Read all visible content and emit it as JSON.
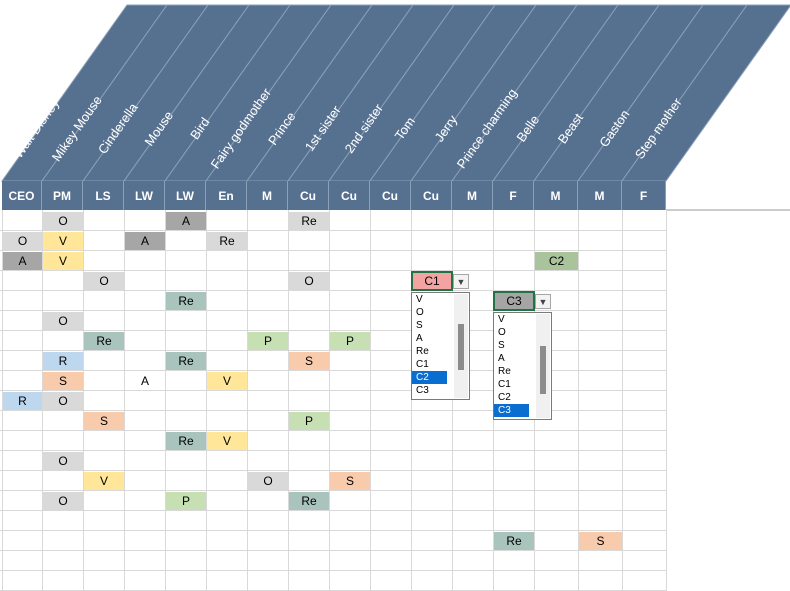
{
  "sheet": {
    "names": [
      "Walt Disney",
      "Mikey Mouse",
      "Cinderella",
      "Mouse",
      "Bird",
      "Fairy godmother",
      "Prince",
      "1st sister",
      "2nd sister",
      "Tom",
      "Jerry",
      "Prince charming",
      "Belle",
      "Beast",
      "Gaston",
      "Step mother"
    ],
    "roles": [
      "CEO",
      "PM",
      "LS",
      "LW",
      "LW",
      "En",
      "M",
      "Cu",
      "Cu",
      "Cu",
      "Cu",
      "M",
      "F",
      "M",
      "M",
      "F"
    ],
    "colors": {
      "header": "#56708f",
      "grey": "#a6a6a6",
      "light_grey": "#d9d9d9",
      "yellow": "#ffe699",
      "green_dark": "#a9c4bc",
      "green_light": "#c6e0b4",
      "orange": "#f8cbad",
      "blue": "#bdd7ee",
      "red": "#f4a3a3",
      "green_c2": "#a9c49b",
      "c3": "#a5a5a5"
    },
    "cells": [
      {
        "row": 0,
        "col": 1,
        "text": "O",
        "color": "light_grey"
      },
      {
        "row": 0,
        "col": 4,
        "text": "A",
        "color": "grey"
      },
      {
        "row": 0,
        "col": 7,
        "text": "Re",
        "color": "light_grey"
      },
      {
        "row": 1,
        "col": 0,
        "text": "O",
        "color": "light_grey"
      },
      {
        "row": 1,
        "col": 1,
        "text": "V",
        "color": "yellow"
      },
      {
        "row": 1,
        "col": 3,
        "text": "A",
        "color": "grey"
      },
      {
        "row": 1,
        "col": 5,
        "text": "Re",
        "color": "light_grey"
      },
      {
        "row": 2,
        "col": 0,
        "text": "A",
        "color": "grey"
      },
      {
        "row": 2,
        "col": 1,
        "text": "V",
        "color": "yellow"
      },
      {
        "row": 2,
        "col": 13,
        "text": "C2",
        "color": "green_c2"
      },
      {
        "row": 3,
        "col": 2,
        "text": "O",
        "color": "light_grey"
      },
      {
        "row": 3,
        "col": 7,
        "text": "O",
        "color": "light_grey"
      },
      {
        "row": 4,
        "col": 4,
        "text": "Re",
        "color": "green_dark"
      },
      {
        "row": 5,
        "col": 1,
        "text": "O",
        "color": "light_grey"
      },
      {
        "row": 6,
        "col": 2,
        "text": "Re",
        "color": "green_dark"
      },
      {
        "row": 6,
        "col": 6,
        "text": "P",
        "color": "green_light"
      },
      {
        "row": 6,
        "col": 8,
        "text": "P",
        "color": "green_light"
      },
      {
        "row": 7,
        "col": 1,
        "text": "R",
        "color": "blue"
      },
      {
        "row": 7,
        "col": 4,
        "text": "Re",
        "color": "green_dark"
      },
      {
        "row": 7,
        "col": 7,
        "text": "S",
        "color": "orange"
      },
      {
        "row": 8,
        "col": 1,
        "text": "S",
        "color": "orange"
      },
      {
        "row": 8,
        "col": 3,
        "text": "A",
        "color": "none"
      },
      {
        "row": 8,
        "col": 5,
        "text": "V",
        "color": "yellow"
      },
      {
        "row": 9,
        "col": 0,
        "text": "R",
        "color": "blue"
      },
      {
        "row": 9,
        "col": 1,
        "text": "O",
        "color": "light_grey"
      },
      {
        "row": 10,
        "col": 2,
        "text": "S",
        "color": "orange"
      },
      {
        "row": 10,
        "col": 7,
        "text": "P",
        "color": "green_light"
      },
      {
        "row": 11,
        "col": 4,
        "text": "Re",
        "color": "green_dark"
      },
      {
        "row": 11,
        "col": 5,
        "text": "V",
        "color": "yellow"
      },
      {
        "row": 12,
        "col": 1,
        "text": "O",
        "color": "light_grey"
      },
      {
        "row": 13,
        "col": 2,
        "text": "V",
        "color": "yellow"
      },
      {
        "row": 13,
        "col": 6,
        "text": "O",
        "color": "light_grey"
      },
      {
        "row": 13,
        "col": 8,
        "text": "S",
        "color": "orange"
      },
      {
        "row": 14,
        "col": 1,
        "text": "O",
        "color": "light_grey"
      },
      {
        "row": 14,
        "col": 4,
        "text": "P",
        "color": "green_light"
      },
      {
        "row": 14,
        "col": 7,
        "text": "Re",
        "color": "green_dark"
      },
      {
        "row": 16,
        "col": 12,
        "text": "Re",
        "color": "green_dark"
      },
      {
        "row": 16,
        "col": 14,
        "text": "S",
        "color": "orange"
      }
    ],
    "dropdowns": [
      {
        "row": 3,
        "col": 10,
        "value": "C1",
        "color": "red",
        "options": [
          "V",
          "O",
          "S",
          "A",
          "Re",
          "C1",
          "C2",
          "C3"
        ],
        "selected": "C2"
      },
      {
        "row": 4,
        "col": 12,
        "value": "C3",
        "color": "c3",
        "options": [
          "V",
          "O",
          "S",
          "A",
          "Re",
          "C1",
          "C2",
          "C3"
        ],
        "selected": "C3"
      }
    ]
  }
}
